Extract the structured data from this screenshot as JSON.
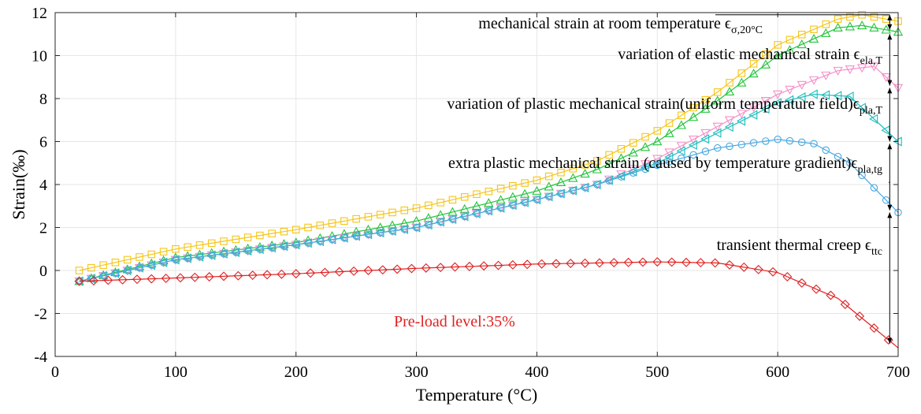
{
  "chart_data": {
    "type": "line",
    "xlabel": "Temperature (°C)",
    "ylabel": "Strain(‰)",
    "xlim": [
      0,
      700
    ],
    "ylim": [
      -4,
      12
    ],
    "xticks": [
      0,
      100,
      200,
      300,
      400,
      500,
      600,
      700
    ],
    "yticks": [
      -4,
      -2,
      0,
      2,
      4,
      6,
      8,
      10,
      12
    ],
    "grid": true,
    "legend": "none",
    "note": {
      "text": "Pre-load level:35%",
      "color": "#e02020"
    },
    "annotations": [
      {
        "main": "mechanical strain at room temperature ϵ",
        "sub": "σ,20°C"
      },
      {
        "main": "variation of elastic mechanical strain ϵ",
        "sub": "ela,T"
      },
      {
        "main": "variation of plastic mechanical strain(uniform temperature field)ϵ",
        "sub": "pla,T"
      },
      {
        "main": "extra plastic mechanical strain (caused by temperature gradient)ϵ",
        "sub": "pla,tg"
      },
      {
        "main": "transient thermal creep ϵ",
        "sub": "ttc"
      }
    ],
    "series": [
      {
        "marker": "square",
        "color": "#f5c518",
        "x": [
          20,
          100,
          200,
          300,
          400,
          450,
          500,
          550,
          600,
          650,
          670,
          700
        ],
        "y": [
          0.0,
          1.0,
          1.9,
          2.9,
          4.2,
          5.1,
          6.5,
          8.3,
          10.5,
          11.7,
          11.9,
          11.6
        ]
      },
      {
        "marker": "triangle-up",
        "color": "#22c43a",
        "x": [
          20,
          100,
          200,
          300,
          400,
          450,
          500,
          550,
          600,
          650,
          670,
          700
        ],
        "y": [
          -0.5,
          0.6,
          1.3,
          2.3,
          3.7,
          4.7,
          6.0,
          7.9,
          10.0,
          11.3,
          11.4,
          11.1
        ]
      },
      {
        "marker": "triangle-down",
        "color": "#f58fc8",
        "x": [
          20,
          100,
          200,
          300,
          400,
          450,
          500,
          550,
          600,
          650,
          680,
          700
        ],
        "y": [
          -0.5,
          0.5,
          1.2,
          2.0,
          3.3,
          4.0,
          5.2,
          6.7,
          8.2,
          9.3,
          9.5,
          8.5
        ]
      },
      {
        "marker": "triangle-left",
        "color": "#1cbcbc",
        "x": [
          20,
          100,
          200,
          300,
          400,
          450,
          500,
          550,
          600,
          630,
          660,
          700
        ],
        "y": [
          -0.5,
          0.5,
          1.2,
          2.0,
          3.3,
          4.0,
          5.0,
          6.4,
          7.8,
          8.2,
          8.1,
          6.0
        ]
      },
      {
        "marker": "circle",
        "color": "#4aa8e0",
        "x": [
          20,
          100,
          200,
          300,
          400,
          450,
          500,
          550,
          600,
          630,
          660,
          700
        ],
        "y": [
          -0.5,
          0.5,
          1.2,
          2.0,
          3.3,
          4.0,
          4.9,
          5.7,
          6.1,
          5.9,
          5.0,
          2.7
        ]
      },
      {
        "marker": "diamond",
        "color": "#e02020",
        "x": [
          20,
          100,
          200,
          300,
          400,
          500,
          550,
          600,
          650,
          700
        ],
        "y": [
          -0.5,
          -0.35,
          -0.15,
          0.1,
          0.3,
          0.4,
          0.35,
          -0.1,
          -1.3,
          -3.6
        ]
      }
    ]
  }
}
